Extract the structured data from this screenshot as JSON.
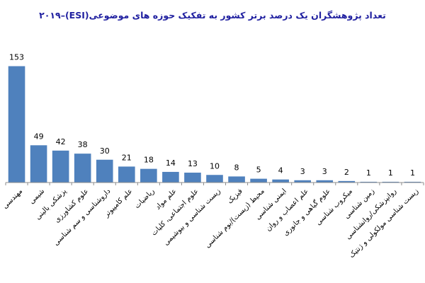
{
  "chart_data": {
    "type": "bar",
    "title": "تعداد پژوهشگران یک درصد برتر کشور به تفکیک حوزه های موضوعی(ESI)–۲۰۱۹",
    "xlabel": "",
    "ylabel": "",
    "ylim": [
      0,
      160
    ],
    "grid": false,
    "legend": "none",
    "bar_color": "#4f81bd",
    "categories": [
      "مهندسی",
      "شیمی",
      "پزشکی بالینی",
      "علوم کشاورزی",
      "داروشناسی و سم شناسی",
      "علم کامپیوتر",
      "ریاضیات",
      "علم مواد",
      "علوم اجتماعی، کلیات",
      "زیست شناسی و بیوشیمی",
      "فیزیک",
      "محیط (زیست)/بوم شناسی",
      "ایمنی شناسی",
      "علم اعصاب و روان",
      "علوم گیاهی و جانوری",
      "میکروب شناسی",
      "زمین شناسی",
      "روانپزشکی/روانشناسی",
      "زیست شناسی مولکولی و ژنتیک"
    ],
    "values": [
      153,
      49,
      42,
      38,
      30,
      21,
      18,
      14,
      13,
      10,
      8,
      5,
      4,
      3,
      3,
      2,
      1,
      1,
      1
    ]
  }
}
